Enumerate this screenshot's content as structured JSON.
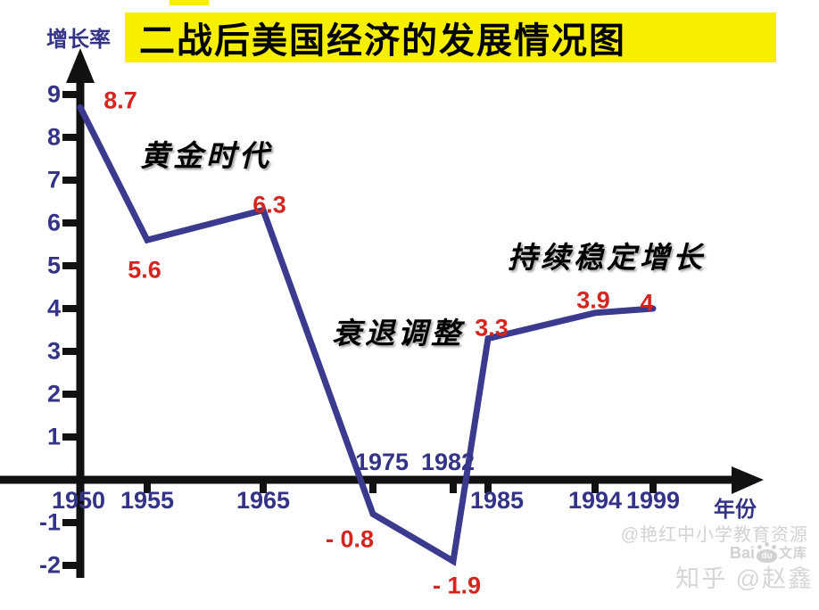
{
  "title": "二战后美国经济的发展情况图",
  "y_axis_title": "增长率",
  "x_axis_title": "年份",
  "watermarks": {
    "resource": "@艳红中小学教育资源",
    "zhihu": "知乎 @赵鑫",
    "baidu_bai": "Bai",
    "baidu_du": "du",
    "baidu_wenku": "文库"
  },
  "chart_data": {
    "type": "line",
    "title": "二战后美国经济的发展情况图",
    "xlabel": "年份",
    "ylabel": "增长率",
    "x": [
      1950,
      1955,
      1965,
      1975,
      1982,
      1985,
      1994,
      1999
    ],
    "values": [
      8.7,
      5.6,
      6.3,
      -0.8,
      -1.9,
      3.3,
      3.9,
      4
    ],
    "point_labels": [
      "8.7",
      "5.6",
      "6.3",
      "- 0.8",
      "- 1.9",
      "3.3",
      "3.9",
      "4"
    ],
    "x_tick_labels": [
      "1950",
      "1955",
      "1965",
      "1975",
      "1982",
      "1985",
      "1994",
      "1999"
    ],
    "y_ticks": [
      9,
      8,
      7,
      6,
      5,
      4,
      3,
      2,
      1,
      -1,
      -2
    ],
    "ylim": [
      -2.5,
      9.5
    ],
    "grid": false,
    "legend": false,
    "annotations": [
      {
        "text": "黄金时代"
      },
      {
        "text": "衰退调整"
      },
      {
        "text": "持续稳定增长"
      }
    ],
    "line_color": "#3a3a8e",
    "point_label_color": "#d4251f",
    "axis_color": "#111111",
    "tick_label_color": "#333388",
    "title_bg_color": "#f7ef00"
  }
}
